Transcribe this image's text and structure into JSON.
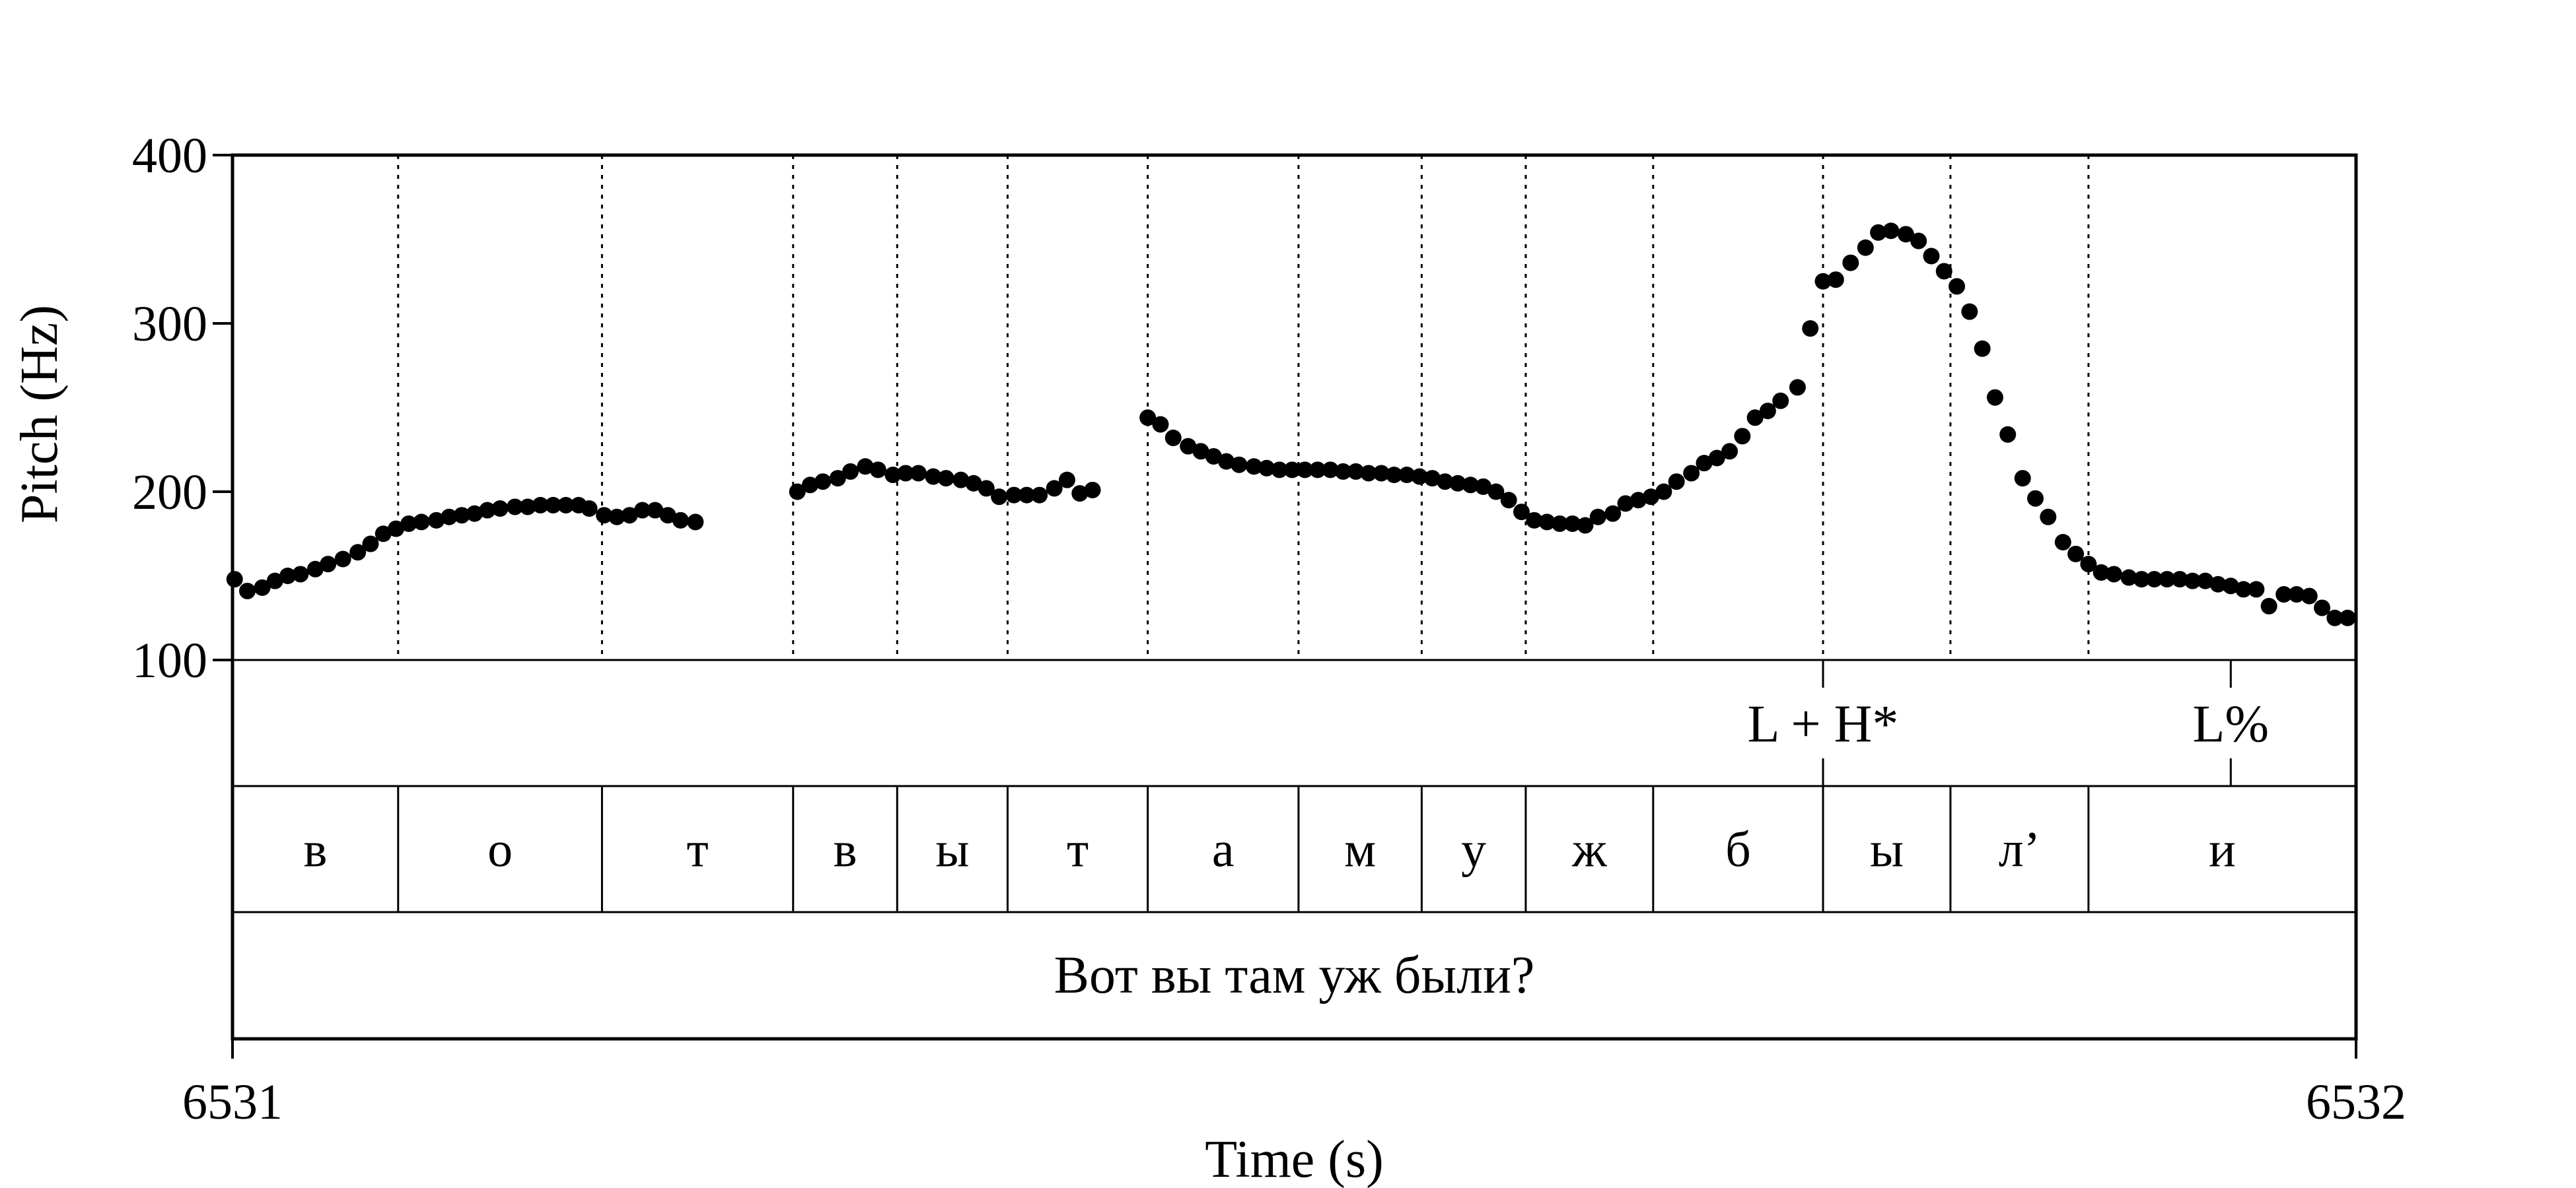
{
  "chart_data": {
    "type": "scatter",
    "xlabel": "Time (s)",
    "ylabel": "Pitch (Hz)",
    "xlim": [
      6531,
      6532
    ],
    "ylim": [
      100,
      400
    ],
    "x_ticks": [
      "6531",
      "6532"
    ],
    "y_ticks": [
      {
        "value": 100,
        "label": "100"
      },
      {
        "value": 200,
        "label": "200"
      },
      {
        "value": 300,
        "label": "300"
      },
      {
        "value": 400,
        "label": "400"
      }
    ],
    "segment_boundaries": [
      6531.0,
      6531.078,
      6531.174,
      6531.264,
      6531.313,
      6531.365,
      6531.431,
      6531.502,
      6531.56,
      6531.609,
      6531.669,
      6531.749,
      6531.809,
      6531.874,
      6532.0
    ],
    "segments": [
      "в",
      "о",
      "т",
      "в",
      "ы",
      "т",
      "а",
      "м",
      "у",
      "ж",
      "б",
      "ы",
      "л’",
      "и"
    ],
    "tones": [
      {
        "label": "L + H*",
        "time": 6531.749
      },
      {
        "label": "L%",
        "time": 6531.941
      }
    ],
    "utterance": "Вот вы там уж были?",
    "series": [
      {
        "points": [
          [
            6531.001,
            148
          ],
          [
            6531.007,
            141
          ],
          [
            6531.014,
            143
          ],
          [
            6531.02,
            147
          ],
          [
            6531.026,
            150
          ],
          [
            6531.032,
            151
          ],
          [
            6531.039,
            154
          ],
          [
            6531.045,
            157
          ],
          [
            6531.052,
            160
          ],
          [
            6531.059,
            164
          ],
          [
            6531.065,
            169
          ],
          [
            6531.071,
            175
          ],
          [
            6531.077,
            178
          ],
          [
            6531.083,
            181
          ],
          [
            6531.089,
            182
          ],
          [
            6531.096,
            183
          ],
          [
            6531.102,
            185
          ],
          [
            6531.108,
            186
          ],
          [
            6531.114,
            187
          ],
          [
            6531.12,
            189
          ],
          [
            6531.126,
            190
          ],
          [
            6531.133,
            191
          ],
          [
            6531.139,
            191
          ],
          [
            6531.145,
            192
          ],
          [
            6531.151,
            192
          ],
          [
            6531.157,
            192
          ],
          [
            6531.163,
            192
          ],
          [
            6531.168,
            190
          ],
          [
            6531.175,
            186
          ],
          [
            6531.181,
            185
          ],
          [
            6531.187,
            186
          ],
          [
            6531.193,
            189
          ],
          [
            6531.199,
            189
          ],
          [
            6531.205,
            186
          ],
          [
            6531.211,
            183
          ],
          [
            6531.218,
            182
          ],
          [
            6531.266,
            200
          ],
          [
            6531.272,
            204
          ],
          [
            6531.278,
            206
          ],
          [
            6531.285,
            208
          ],
          [
            6531.291,
            212
          ],
          [
            6531.298,
            215
          ],
          [
            6531.304,
            213
          ],
          [
            6531.311,
            210
          ],
          [
            6531.317,
            211
          ],
          [
            6531.323,
            211
          ],
          [
            6531.33,
            209
          ],
          [
            6531.336,
            208
          ],
          [
            6531.343,
            207
          ],
          [
            6531.349,
            205
          ],
          [
            6531.355,
            202
          ],
          [
            6531.361,
            197
          ],
          [
            6531.368,
            198
          ],
          [
            6531.374,
            198
          ],
          [
            6531.38,
            198
          ],
          [
            6531.387,
            202
          ],
          [
            6531.393,
            207
          ],
          [
            6531.399,
            199
          ],
          [
            6531.405,
            201
          ],
          [
            6531.431,
            244
          ],
          [
            6531.437,
            240
          ],
          [
            6531.443,
            232
          ],
          [
            6531.45,
            227
          ],
          [
            6531.456,
            224
          ],
          [
            6531.462,
            221
          ],
          [
            6531.468,
            218
          ],
          [
            6531.474,
            216
          ],
          [
            6531.481,
            215
          ],
          [
            6531.487,
            214
          ],
          [
            6531.493,
            213
          ],
          [
            6531.499,
            213
          ],
          [
            6531.505,
            213
          ],
          [
            6531.511,
            213
          ],
          [
            6531.517,
            213
          ],
          [
            6531.523,
            212
          ],
          [
            6531.529,
            212
          ],
          [
            6531.535,
            211
          ],
          [
            6531.541,
            211
          ],
          [
            6531.547,
            210
          ],
          [
            6531.553,
            210
          ],
          [
            6531.559,
            209
          ],
          [
            6531.565,
            208
          ],
          [
            6531.571,
            206
          ],
          [
            6531.577,
            205
          ],
          [
            6531.583,
            204
          ],
          [
            6531.589,
            203
          ],
          [
            6531.595,
            200
          ],
          [
            6531.601,
            195
          ],
          [
            6531.607,
            188
          ],
          [
            6531.613,
            183
          ],
          [
            6531.619,
            182
          ],
          [
            6531.625,
            181
          ],
          [
            6531.631,
            181
          ],
          [
            6531.637,
            180
          ],
          [
            6531.643,
            185
          ],
          [
            6531.65,
            187
          ],
          [
            6531.656,
            193
          ],
          [
            6531.662,
            195
          ],
          [
            6531.668,
            197
          ],
          [
            6531.674,
            200
          ],
          [
            6531.68,
            206
          ],
          [
            6531.687,
            211
          ],
          [
            6531.693,
            217
          ],
          [
            6531.699,
            220
          ],
          [
            6531.705,
            224
          ],
          [
            6531.711,
            233
          ],
          [
            6531.717,
            244
          ],
          [
            6531.723,
            248
          ],
          [
            6531.729,
            254
          ],
          [
            6531.737,
            262
          ],
          [
            6531.743,
            297
          ],
          [
            6531.749,
            325
          ],
          [
            6531.755,
            326
          ],
          [
            6531.762,
            336
          ],
          [
            6531.769,
            345
          ],
          [
            6531.775,
            354
          ],
          [
            6531.781,
            355
          ],
          [
            6531.788,
            353
          ],
          [
            6531.794,
            349
          ],
          [
            6531.8,
            340
          ],
          [
            6531.806,
            331
          ],
          [
            6531.812,
            322
          ],
          [
            6531.818,
            307
          ],
          [
            6531.824,
            285
          ],
          [
            6531.83,
            256
          ],
          [
            6531.836,
            234
          ],
          [
            6531.843,
            208
          ],
          [
            6531.849,
            196
          ],
          [
            6531.855,
            185
          ],
          [
            6531.862,
            170
          ],
          [
            6531.868,
            163
          ],
          [
            6531.874,
            157
          ],
          [
            6531.88,
            152
          ],
          [
            6531.886,
            151
          ],
          [
            6531.893,
            149
          ],
          [
            6531.899,
            148
          ],
          [
            6531.905,
            148
          ],
          [
            6531.911,
            148
          ],
          [
            6531.917,
            148
          ],
          [
            6531.923,
            147
          ],
          [
            6531.929,
            147
          ],
          [
            6531.935,
            145
          ],
          [
            6531.941,
            144
          ],
          [
            6531.947,
            142
          ],
          [
            6531.953,
            142
          ],
          [
            6531.959,
            132
          ],
          [
            6531.966,
            139
          ],
          [
            6531.972,
            139
          ],
          [
            6531.978,
            138
          ],
          [
            6531.984,
            131
          ],
          [
            6531.99,
            125
          ],
          [
            6531.996,
            125
          ]
        ]
      }
    ]
  }
}
